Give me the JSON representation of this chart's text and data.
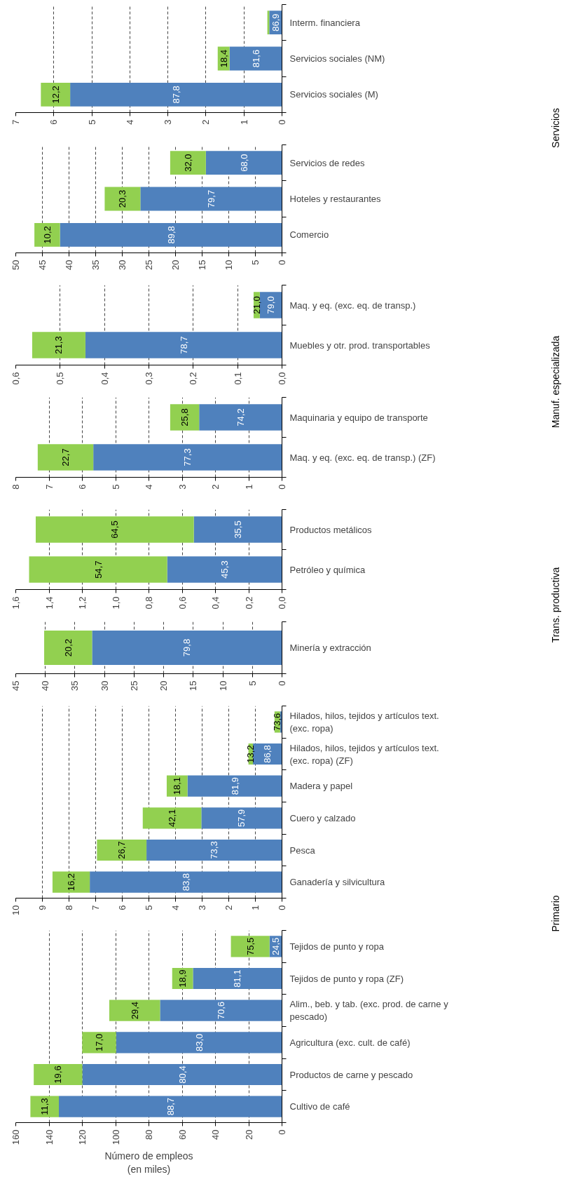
{
  "chart_data": [
    {
      "type": "bar",
      "orientation": "horizontal",
      "stacked": true,
      "grid": "x",
      "categories": [
        "Interm. financiera",
        "Servicios sociales (NM)",
        "Servicios sociales (M)"
      ],
      "series": [
        {
          "color": "#4f81bd",
          "values": [
            0.335,
            1.38,
            5.57
          ]
        },
        {
          "color": "#92d050",
          "values": [
            0.05,
            0.31,
            0.77
          ]
        }
      ],
      "annotations": [
        "86,9",
        "81,6",
        "18,4",
        "87,8",
        "12,2",
        "Servicios"
      ],
      "xlim": [
        7,
        0
      ],
      "xticks": [
        0,
        1,
        2,
        3,
        4,
        5,
        6,
        7
      ]
    },
    {
      "type": "bar",
      "orientation": "horizontal",
      "stacked": true,
      "grid": "x",
      "categories": [
        "Servicios de redes",
        "Hoteles y restaurantes",
        "Comercio"
      ],
      "series": [
        {
          "color": "#4f81bd",
          "values": [
            14.3,
            26.6,
            41.7
          ]
        },
        {
          "color": "#92d050",
          "values": [
            6.7,
            6.7,
            4.8
          ]
        }
      ],
      "annotations": [
        "68,0",
        "32,0",
        "79,7",
        "20,3",
        "89,8",
        "10,2"
      ],
      "xlim": [
        50,
        0
      ],
      "xticks": [
        0,
        5,
        10,
        15,
        20,
        25,
        30,
        35,
        40,
        45,
        50
      ]
    },
    {
      "type": "bar",
      "orientation": "horizontal",
      "stacked": true,
      "grid": "x",
      "categories": [
        "Maq. y eq. (exc. eq. de transp.)",
        "Muebles y otr. prod. transportables"
      ],
      "series": [
        {
          "color": "#4f81bd",
          "values": [
            0.05,
            0.443
          ]
        },
        {
          "color": "#92d050",
          "values": [
            0.014,
            0.12
          ]
        }
      ],
      "annotations": [
        "79,0",
        "21,0",
        "78,7",
        "21,3",
        "Manuf.  especializada"
      ],
      "xlim": [
        0.6,
        0
      ],
      "xticks": [
        {
          "value": 0,
          "label": "0,0"
        },
        {
          "value": 0.1,
          "label": "0,1"
        },
        {
          "value": 0.2,
          "label": "0,2"
        },
        {
          "value": 0.3,
          "label": "0,3"
        },
        {
          "value": 0.4,
          "label": "0,4"
        },
        {
          "value": 0.5,
          "label": "0,5"
        },
        {
          "value": 0.6,
          "label": "0,6"
        }
      ]
    },
    {
      "type": "bar",
      "orientation": "horizontal",
      "stacked": true,
      "grid": "x",
      "categories": [
        "Maquinaria y equipo de transporte",
        "Maq. y eq. (exc. eq. de transp.) (ZF)"
      ],
      "series": [
        {
          "color": "#4f81bd",
          "values": [
            2.49,
            5.67
          ]
        },
        {
          "color": "#92d050",
          "values": [
            0.87,
            1.67
          ]
        }
      ],
      "annotations": [
        "74,2",
        "25,8",
        "77,3",
        "22,7"
      ],
      "xlim": [
        8,
        0
      ],
      "xticks": [
        0,
        1,
        2,
        3,
        4,
        5,
        6,
        7,
        8
      ]
    },
    {
      "type": "bar",
      "orientation": "horizontal",
      "stacked": true,
      "grid": "x",
      "categories": [
        "Productos metálicos",
        "Petróleo y química"
      ],
      "series": [
        {
          "color": "#4f81bd",
          "values": [
            0.53,
            0.69
          ]
        },
        {
          "color": "#92d050",
          "values": [
            0.95,
            0.83
          ]
        }
      ],
      "annotations": [
        "35,5",
        "64,5",
        "45,3",
        "54,7",
        "Trans. productiva"
      ],
      "xlim": [
        1.6,
        0
      ],
      "xticks": [
        {
          "value": 0,
          "label": "0,0"
        },
        {
          "value": 0.2,
          "label": "0,2"
        },
        {
          "value": 0.4,
          "label": "0,4"
        },
        {
          "value": 0.6,
          "label": "0,6"
        },
        {
          "value": 0.8,
          "label": "0,8"
        },
        {
          "value": 1.0,
          "label": "1,0"
        },
        {
          "value": 1.2,
          "label": "1,2"
        },
        {
          "value": 1.4,
          "label": "1,4"
        },
        {
          "value": 1.6,
          "label": "1,6"
        }
      ]
    },
    {
      "type": "bar",
      "orientation": "horizontal",
      "stacked": true,
      "grid": "x",
      "categories": [
        "Minería y extracción"
      ],
      "series": [
        {
          "color": "#4f81bd",
          "values": [
            32.1
          ]
        },
        {
          "color": "#92d050",
          "values": [
            8.1
          ]
        }
      ],
      "annotations": [
        "79,8",
        "20,2"
      ],
      "xlim": [
        45,
        0
      ],
      "xticks": [
        0,
        5,
        10,
        15,
        20,
        25,
        30,
        35,
        40,
        45
      ]
    },
    {
      "type": "bar",
      "orientation": "horizontal",
      "stacked": true,
      "grid": "x",
      "categories": [
        "Hilados, hilos, tejidos y artículos text. (exc. ropa)",
        "Hilados, hilos, tejidos y artículos text. (exc. ropa) (ZF)",
        "Madera y papel",
        "Cuero y calzado",
        "Pesca",
        "Ganadería y silvicultura"
      ],
      "series": [
        {
          "color": "#4f81bd",
          "values": [
            0.07,
            1.09,
            3.55,
            3.03,
            5.09,
            7.22
          ]
        },
        {
          "color": "#92d050",
          "values": [
            0.21,
            0.17,
            0.78,
            2.2,
            1.86,
            1.4
          ]
        }
      ],
      "annotations": [
        "73,6",
        "86,8",
        "13,2",
        "81,9",
        "18,1",
        "57,9",
        "42,1",
        "73,3",
        "26,7",
        "83,8",
        "16,2",
        "Primario"
      ],
      "xlim": [
        10,
        0
      ],
      "xticks": [
        0,
        1,
        2,
        3,
        4,
        5,
        6,
        7,
        8,
        9,
        10
      ]
    },
    {
      "type": "bar",
      "orientation": "horizontal",
      "stacked": true,
      "grid": "x",
      "xlabel": "Número de empleos (en miles)",
      "categories": [
        "Tejidos de punto y ropa",
        "Tejidos de punto y ropa (ZF)",
        "Alim., beb. y tab. (exc. prod. de carne y pescado)",
        "Agricultura (exc. cult. de café)",
        "Productos de carne y pescado",
        "Cultivo de café"
      ],
      "series": [
        {
          "color": "#4f81bd",
          "values": [
            7.5,
            53.5,
            73.3,
            99.7,
            120.0,
            134.1
          ]
        },
        {
          "color": "#92d050",
          "values": [
            23.2,
            12.5,
            30.5,
            20.4,
            29.2,
            17.1
          ]
        }
      ],
      "annotations": [
        "24,5",
        "75,5",
        "81,1",
        "18,9",
        "70,6",
        "29,4",
        "83,0",
        "17,0",
        "80,4",
        "19,6",
        "88,7",
        "11,3"
      ],
      "xlim": [
        160,
        0
      ],
      "xticks": [
        0,
        20,
        40,
        60,
        80,
        100,
        120,
        140,
        160
      ]
    }
  ]
}
